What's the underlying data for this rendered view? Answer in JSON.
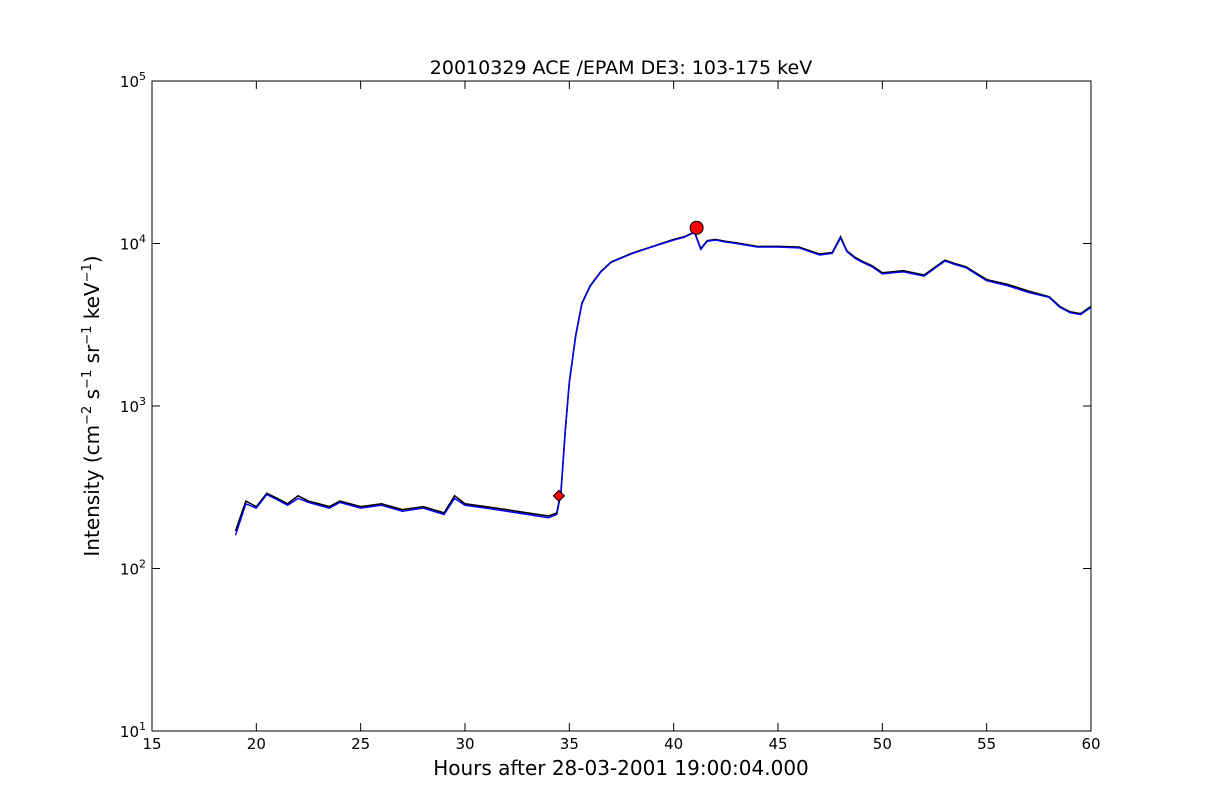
{
  "chart_data": {
    "type": "line",
    "title": "20010329 ACE /EPAM DE3: 103-175 keV",
    "xlabel": "Hours after 28-03-2001 19:00:04.000",
    "ylabel_main": "Intensity (cm",
    "ylabel_parts": [
      "−2",
      " s",
      "−1",
      " sr",
      "−1",
      " keV",
      "−1",
      ")"
    ],
    "xlim": [
      15,
      60
    ],
    "ylim": [
      10,
      100000
    ],
    "yscale": "log",
    "grid": false,
    "x_ticks": [
      "15",
      "20",
      "25",
      "30",
      "35",
      "40",
      "45",
      "50",
      "55",
      "60"
    ],
    "y_ticks": [
      {
        "base": "10",
        "exp": "1"
      },
      {
        "base": "10",
        "exp": "2"
      },
      {
        "base": "10",
        "exp": "3"
      },
      {
        "base": "10",
        "exp": "4"
      },
      {
        "base": "10",
        "exp": "5"
      }
    ],
    "series": [
      {
        "color": "#000000",
        "x": [
          19.0,
          19.5,
          20.0,
          20.5,
          21.0,
          21.5,
          22.0,
          22.5,
          23.0,
          23.5,
          24.0,
          25.0,
          26.0,
          27.0,
          28.0,
          29.0,
          29.5,
          30.0,
          31.0,
          32.0,
          33.0,
          34.0,
          34.4,
          34.6,
          34.8,
          35.0,
          35.3,
          35.6,
          36.0,
          36.5,
          37.0,
          38.0,
          39.0,
          40.0,
          40.5,
          41.0,
          41.3,
          41.6,
          42.0,
          42.5,
          43.0,
          44.0,
          45.0,
          46.0,
          47.0,
          47.6,
          48.0,
          48.3,
          48.7,
          49.0,
          49.5,
          50.0,
          51.0,
          52.0,
          53.0,
          53.5,
          54.0,
          55.0,
          56.0,
          57.0,
          58.0,
          58.5,
          59.0,
          59.5,
          60.0
        ],
        "y": [
          170,
          260,
          240,
          290,
          270,
          250,
          280,
          260,
          250,
          240,
          260,
          240,
          250,
          230,
          240,
          220,
          280,
          250,
          240,
          230,
          220,
          210,
          220,
          300,
          700,
          1400,
          2700,
          4300,
          5500,
          6700,
          7700,
          8700,
          9600,
          10600,
          11000,
          11800,
          9300,
          10400,
          10600,
          10300,
          10100,
          9600,
          9600,
          9500,
          8600,
          8800,
          11000,
          9000,
          8200,
          7800,
          7300,
          6600,
          6800,
          6400,
          7900,
          7500,
          7200,
          6000,
          5600,
          5100,
          4700,
          4100,
          3800,
          3700,
          4100
        ]
      },
      {
        "color": "#0000ff",
        "x": [
          19.0,
          19.5,
          20.0,
          20.5,
          21.0,
          21.5,
          22.0,
          22.5,
          23.0,
          23.5,
          24.0,
          25.0,
          26.0,
          27.0,
          28.0,
          29.0,
          29.5,
          30.0,
          31.0,
          32.0,
          33.0,
          34.0,
          34.4,
          34.6,
          34.8,
          35.0,
          35.3,
          35.6,
          36.0,
          36.5,
          37.0,
          38.0,
          39.0,
          40.0,
          40.5,
          41.0,
          41.3,
          41.6,
          42.0,
          42.5,
          43.0,
          44.0,
          45.0,
          46.0,
          47.0,
          47.6,
          48.0,
          48.3,
          48.7,
          49.0,
          49.5,
          50.0,
          51.0,
          52.0,
          53.0,
          53.5,
          54.0,
          55.0,
          56.0,
          57.0,
          58.0,
          58.5,
          59.0,
          59.5,
          60.0
        ],
        "y": [
          160,
          250,
          235,
          285,
          265,
          245,
          270,
          255,
          245,
          235,
          255,
          235,
          245,
          225,
          235,
          215,
          270,
          245,
          235,
          225,
          215,
          205,
          215,
          290,
          690,
          1380,
          2650,
          4250,
          5450,
          6650,
          7650,
          8650,
          9550,
          10500,
          10900,
          11700,
          9200,
          10300,
          10500,
          10200,
          10000,
          9500,
          9500,
          9400,
          8500,
          8700,
          10800,
          8900,
          8100,
          7700,
          7200,
          6500,
          6700,
          6300,
          7800,
          7400,
          7100,
          5900,
          5500,
          5000,
          4650,
          4050,
          3750,
          3650,
          4050
        ]
      }
    ],
    "markers": [
      {
        "x": 34.5,
        "y": 280,
        "color": "#ff0000",
        "shape": "diamond"
      },
      {
        "x": 41.1,
        "y": 12500,
        "color": "#ff0000",
        "shape": "circle"
      }
    ]
  }
}
